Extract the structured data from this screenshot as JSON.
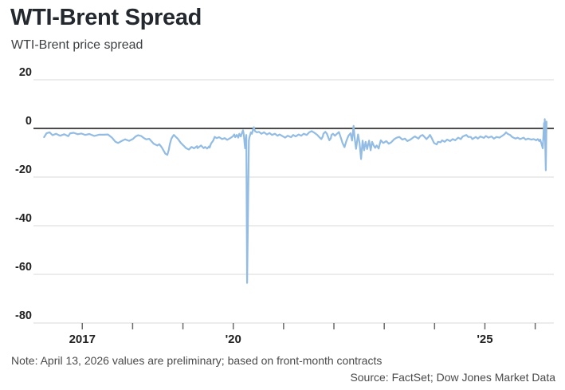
{
  "header": {
    "title": "WTI-Brent Spread",
    "subtitle": "WTI-Brent price spread"
  },
  "footer": {
    "note": "Note: April 13, 2026 values are preliminary; based on front-month contracts",
    "source": "Source: FactSet; Dow Jones Market Data"
  },
  "colors": {
    "background": "#ffffff",
    "line": "#92bce4",
    "grid": "#d9d9d9",
    "zero_line": "#111111",
    "tick": "#6b6b6b",
    "axis_label": "#222222",
    "title": "#23292f",
    "subtitle": "#3d4043",
    "note": "#4a4a4a"
  },
  "chart_data": {
    "type": "line",
    "title": "WTI-Brent Spread",
    "subtitle": "WTI-Brent price spread",
    "xlabel": "",
    "ylabel": "",
    "xlim": [
      2016.03,
      2026.37
    ],
    "ylim": [
      -80,
      20
    ],
    "grid": true,
    "legend_position": "none",
    "y_ticks": [
      {
        "value": 20,
        "label": "20"
      },
      {
        "value": 0,
        "label": "0"
      },
      {
        "value": -20,
        "label": "-20"
      },
      {
        "value": -40,
        "label": "-40"
      },
      {
        "value": -60,
        "label": "-60"
      },
      {
        "value": -80,
        "label": "-80"
      }
    ],
    "x_ticks": [
      {
        "year": 2017,
        "label": "2017"
      },
      {
        "year": 2018,
        "label": ""
      },
      {
        "year": 2019,
        "label": ""
      },
      {
        "year": 2020,
        "label": "'20"
      },
      {
        "year": 2021,
        "label": ""
      },
      {
        "year": 2022,
        "label": ""
      },
      {
        "year": 2023,
        "label": ""
      },
      {
        "year": 2024,
        "label": ""
      },
      {
        "year": 2025,
        "label": "'25"
      },
      {
        "year": 2026,
        "label": ""
      }
    ],
    "series": [
      {
        "name": "WTI-Brent price spread",
        "points": [
          [
            2016.24,
            -3.6
          ],
          [
            2016.29,
            -2.0
          ],
          [
            2016.35,
            -1.6
          ],
          [
            2016.41,
            -2.8
          ],
          [
            2016.48,
            -2.2
          ],
          [
            2016.56,
            -3.0
          ],
          [
            2016.64,
            -2.4
          ],
          [
            2016.72,
            -3.2
          ],
          [
            2016.76,
            -2.0
          ],
          [
            2016.83,
            -1.8
          ],
          [
            2016.91,
            -2.4
          ],
          [
            2016.98,
            -2.1
          ],
          [
            2017.06,
            -2.7
          ],
          [
            2017.14,
            -2.3
          ],
          [
            2017.24,
            -3.1
          ],
          [
            2017.33,
            -2.6
          ],
          [
            2017.43,
            -2.6
          ],
          [
            2017.51,
            -2.5
          ],
          [
            2017.59,
            -3.8
          ],
          [
            2017.66,
            -5.5
          ],
          [
            2017.71,
            -6.0
          ],
          [
            2017.78,
            -5.2
          ],
          [
            2017.85,
            -4.5
          ],
          [
            2017.93,
            -5.1
          ],
          [
            2018.01,
            -4.3
          ],
          [
            2018.06,
            -3.3
          ],
          [
            2018.11,
            -2.8
          ],
          [
            2018.17,
            -3.1
          ],
          [
            2018.22,
            -3.9
          ],
          [
            2018.27,
            -4.5
          ],
          [
            2018.33,
            -4.3
          ],
          [
            2018.38,
            -5.4
          ],
          [
            2018.42,
            -6.3
          ],
          [
            2018.49,
            -7.0
          ],
          [
            2018.53,
            -6.5
          ],
          [
            2018.58,
            -7.8
          ],
          [
            2018.65,
            -10.4
          ],
          [
            2018.69,
            -10.9
          ],
          [
            2018.72,
            -8.7
          ],
          [
            2018.74,
            -6.5
          ],
          [
            2018.77,
            -4.3
          ],
          [
            2018.8,
            -3.2
          ],
          [
            2018.82,
            -2.7
          ],
          [
            2018.85,
            -3.3
          ],
          [
            2018.9,
            -4.3
          ],
          [
            2018.96,
            -6.0
          ],
          [
            2019.01,
            -7.0
          ],
          [
            2019.06,
            -8.1
          ],
          [
            2019.12,
            -8.7
          ],
          [
            2019.17,
            -7.6
          ],
          [
            2019.22,
            -8.2
          ],
          [
            2019.28,
            -7.3
          ],
          [
            2019.29,
            -8.1
          ],
          [
            2019.36,
            -7.0
          ],
          [
            2019.41,
            -8.1
          ],
          [
            2019.44,
            -7.6
          ],
          [
            2019.48,
            -8.3
          ],
          [
            2019.52,
            -7.4
          ],
          [
            2019.53,
            -7.9
          ],
          [
            2019.56,
            -6.2
          ],
          [
            2019.6,
            -5.0
          ],
          [
            2019.63,
            -3.5
          ],
          [
            2019.67,
            -4.0
          ],
          [
            2019.72,
            -3.6
          ],
          [
            2019.78,
            -4.4
          ],
          [
            2019.83,
            -4.0
          ],
          [
            2019.88,
            -4.7
          ],
          [
            2019.94,
            -4.0
          ],
          [
            2019.99,
            -3.3
          ],
          [
            2020.02,
            -2.5
          ],
          [
            2020.04,
            -3.6
          ],
          [
            2020.07,
            -2.7
          ],
          [
            2020.1,
            -3.8
          ],
          [
            2020.12,
            -2.2
          ],
          [
            2020.15,
            -3.3
          ],
          [
            2020.18,
            -1.4
          ],
          [
            2020.195,
            -0.8
          ],
          [
            2020.21,
            -2.7
          ],
          [
            2020.225,
            -6.0
          ],
          [
            2020.235,
            -8.2
          ],
          [
            2020.25,
            -4.4
          ],
          [
            2020.26,
            -2.7
          ],
          [
            2020.275,
            -63.5
          ],
          [
            2020.31,
            -5.0
          ],
          [
            2020.32,
            -3.8
          ],
          [
            2020.35,
            -1.6
          ],
          [
            2020.37,
            -2.2
          ],
          [
            2020.39,
            -0.8
          ],
          [
            2020.41,
            0.5
          ],
          [
            2020.43,
            -1.1
          ],
          [
            2020.47,
            -1.6
          ],
          [
            2020.51,
            -1.4
          ],
          [
            2020.56,
            -2.2
          ],
          [
            2020.61,
            -1.6
          ],
          [
            2020.67,
            -2.5
          ],
          [
            2020.72,
            -1.9
          ],
          [
            2020.77,
            -2.7
          ],
          [
            2020.83,
            -2.2
          ],
          [
            2020.88,
            -3.0
          ],
          [
            2020.92,
            -2.5
          ],
          [
            2020.99,
            -3.3
          ],
          [
            2021.03,
            -3.8
          ],
          [
            2021.08,
            -3.0
          ],
          [
            2021.15,
            -3.6
          ],
          [
            2021.19,
            -2.7
          ],
          [
            2021.24,
            -3.3
          ],
          [
            2021.3,
            -2.5
          ],
          [
            2021.35,
            -3.0
          ],
          [
            2021.4,
            -2.2
          ],
          [
            2021.46,
            -2.7
          ],
          [
            2021.51,
            -1.6
          ],
          [
            2021.56,
            -1.1
          ],
          [
            2021.62,
            -1.9
          ],
          [
            2021.67,
            -2.7
          ],
          [
            2021.72,
            -3.8
          ],
          [
            2021.75,
            -4.4
          ],
          [
            2021.78,
            -3.3
          ],
          [
            2021.79,
            -2.2
          ],
          [
            2021.83,
            -1.4
          ],
          [
            2021.86,
            -2.2
          ],
          [
            2021.91,
            -4.9
          ],
          [
            2021.94,
            -4.0
          ],
          [
            2021.95,
            -2.7
          ],
          [
            2021.98,
            -2.2
          ],
          [
            2022.02,
            -3.0
          ],
          [
            2022.05,
            -2.4
          ],
          [
            2022.1,
            -1.5
          ],
          [
            2022.14,
            -4.0
          ],
          [
            2022.17,
            -6.0
          ],
          [
            2022.21,
            -7.7
          ],
          [
            2022.25,
            -5.0
          ],
          [
            2022.29,
            -3.0
          ],
          [
            2022.33,
            -2.0
          ],
          [
            2022.36,
            -5.0
          ],
          [
            2022.39,
            1.0
          ],
          [
            2022.41,
            -3.5
          ],
          [
            2022.44,
            -8.4
          ],
          [
            2022.48,
            -2.5
          ],
          [
            2022.51,
            -6.0
          ],
          [
            2022.54,
            -12.6
          ],
          [
            2022.57,
            -5.0
          ],
          [
            2022.6,
            -9.0
          ],
          [
            2022.63,
            -5.5
          ],
          [
            2022.66,
            -8.5
          ],
          [
            2022.7,
            -5.0
          ],
          [
            2022.73,
            -9.0
          ],
          [
            2022.76,
            -5.5
          ],
          [
            2022.79,
            -7.0
          ],
          [
            2022.82,
            -8.0
          ],
          [
            2022.85,
            -7.0
          ],
          [
            2022.89,
            -8.3
          ],
          [
            2022.91,
            -6.5
          ],
          [
            2022.93,
            -4.9
          ],
          [
            2022.98,
            -6.0
          ],
          [
            2023.04,
            -5.2
          ],
          [
            2023.09,
            -6.3
          ],
          [
            2023.14,
            -5.7
          ],
          [
            2023.2,
            -4.4
          ],
          [
            2023.25,
            -3.8
          ],
          [
            2023.3,
            -3.5
          ],
          [
            2023.36,
            -4.6
          ],
          [
            2023.41,
            -4.2
          ],
          [
            2023.46,
            -5.2
          ],
          [
            2023.52,
            -4.6
          ],
          [
            2023.57,
            -3.8
          ],
          [
            2023.61,
            -3.3
          ],
          [
            2023.68,
            -4.2
          ],
          [
            2023.72,
            -3.1
          ],
          [
            2023.76,
            -2.7
          ],
          [
            2023.8,
            -3.5
          ],
          [
            2023.84,
            -4.4
          ],
          [
            2023.88,
            -3.5
          ],
          [
            2023.91,
            -2.7
          ],
          [
            2023.94,
            -3.8
          ],
          [
            2023.99,
            -6.0
          ],
          [
            2024.04,
            -6.6
          ],
          [
            2024.07,
            -5.5
          ],
          [
            2024.12,
            -5.7
          ],
          [
            2024.15,
            -4.9
          ],
          [
            2024.2,
            -5.5
          ],
          [
            2024.25,
            -4.6
          ],
          [
            2024.31,
            -5.2
          ],
          [
            2024.36,
            -4.4
          ],
          [
            2024.41,
            -4.9
          ],
          [
            2024.47,
            -3.8
          ],
          [
            2024.52,
            -4.4
          ],
          [
            2024.56,
            -3.3
          ],
          [
            2024.63,
            -2.7
          ],
          [
            2024.67,
            -3.5
          ],
          [
            2024.72,
            -3.5
          ],
          [
            2024.75,
            -4.4
          ],
          [
            2024.82,
            -3.5
          ],
          [
            2024.86,
            -4.2
          ],
          [
            2024.91,
            -3.3
          ],
          [
            2024.98,
            -3.9
          ],
          [
            2025.02,
            -3.1
          ],
          [
            2025.07,
            -3.8
          ],
          [
            2025.13,
            -3.3
          ],
          [
            2025.18,
            -4.2
          ],
          [
            2025.23,
            -3.5
          ],
          [
            2025.29,
            -3.8
          ],
          [
            2025.34,
            -3.1
          ],
          [
            2025.39,
            -2.4
          ],
          [
            2025.42,
            -1.6
          ],
          [
            2025.45,
            -2.2
          ],
          [
            2025.5,
            -2.7
          ],
          [
            2025.54,
            -3.5
          ],
          [
            2025.61,
            -4.2
          ],
          [
            2025.65,
            -3.8
          ],
          [
            2025.7,
            -4.4
          ],
          [
            2025.77,
            -3.8
          ],
          [
            2025.81,
            -4.6
          ],
          [
            2025.86,
            -4.2
          ],
          [
            2025.92,
            -4.6
          ],
          [
            2025.97,
            -4.4
          ],
          [
            2026.02,
            -4.9
          ],
          [
            2026.05,
            -4.4
          ],
          [
            2026.08,
            -5.2
          ],
          [
            2026.1,
            -4.6
          ],
          [
            2026.12,
            -6.0
          ],
          [
            2026.15,
            -8.2
          ],
          [
            2026.16,
            -4.4
          ],
          [
            2026.175,
            2.2
          ],
          [
            2026.185,
            -4.5
          ],
          [
            2026.19,
            3.8
          ],
          [
            2026.21,
            -17.2
          ],
          [
            2026.225,
            2.8
          ]
        ]
      }
    ]
  }
}
